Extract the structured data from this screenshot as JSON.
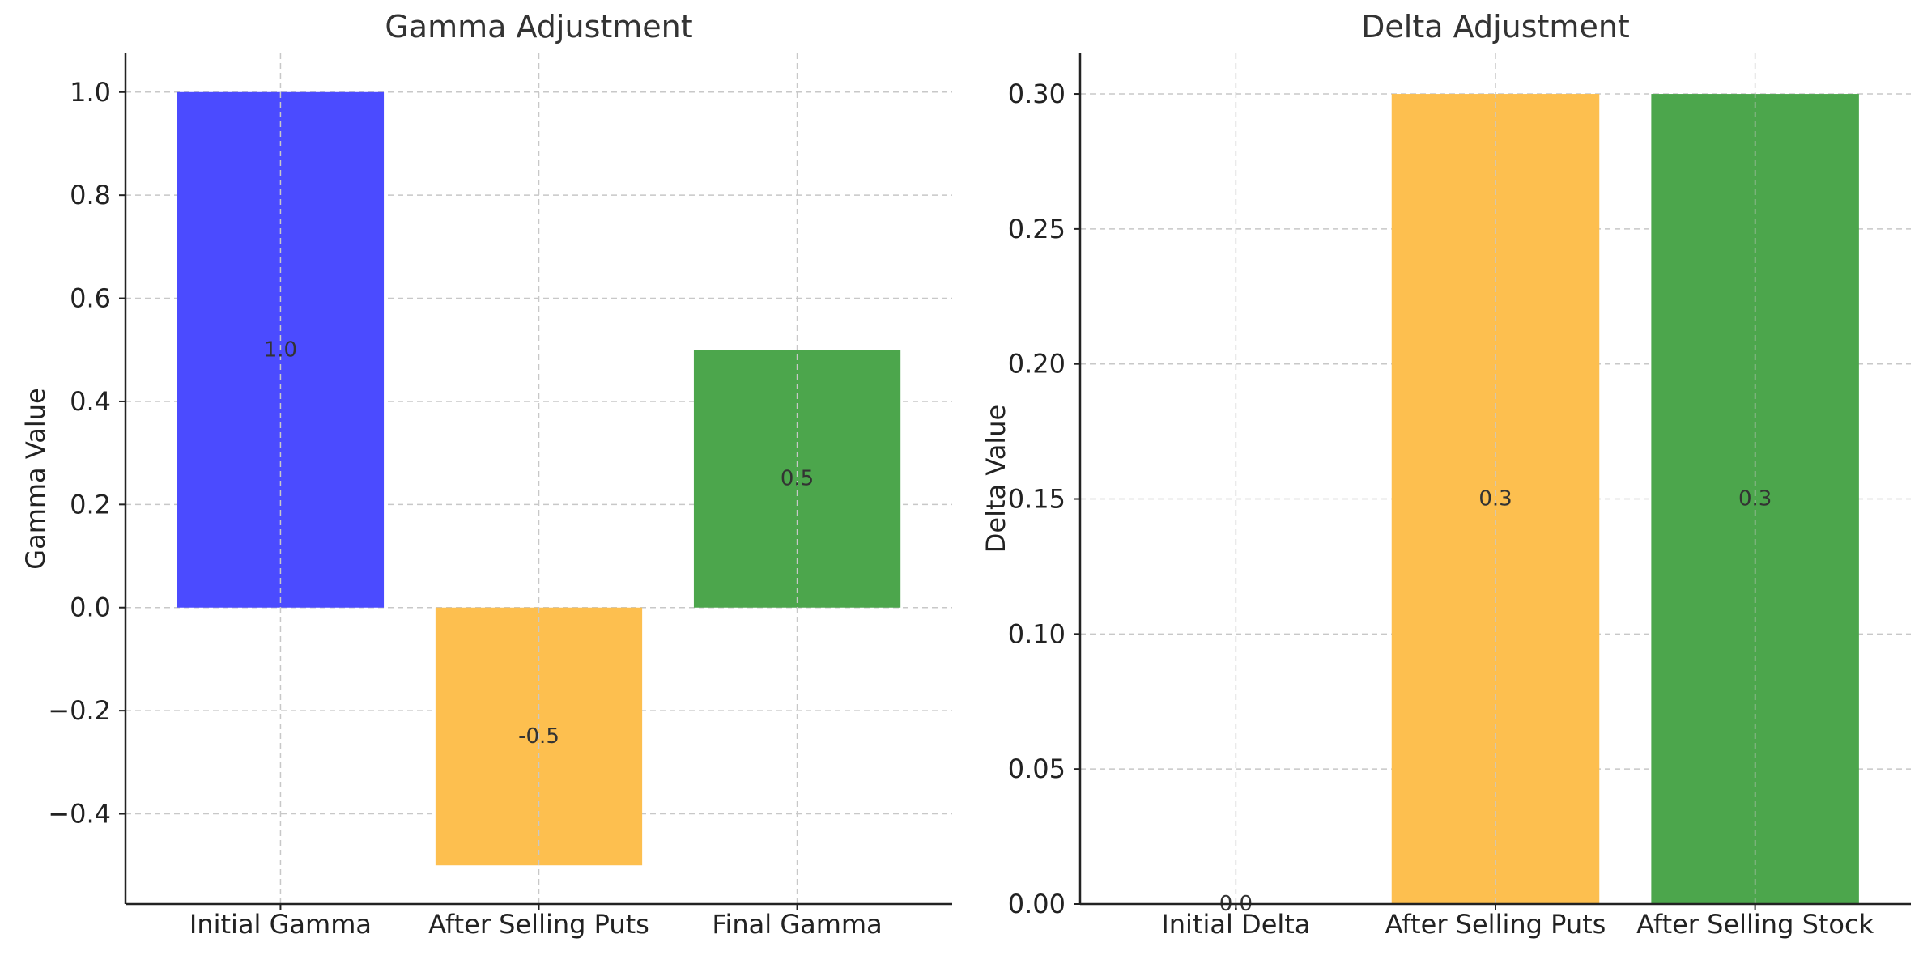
{
  "chart_data": [
    {
      "type": "bar",
      "title": "Gamma Adjustment",
      "xlabel": "",
      "ylabel": "Gamma Value",
      "categories": [
        "Initial Gamma",
        "After Selling Puts",
        "Final Gamma"
      ],
      "values": [
        1.0,
        -0.5,
        0.5
      ],
      "value_labels": [
        "1.0",
        "-0.5",
        "0.5"
      ],
      "colors": [
        "#4B4BFF",
        "#FDBF4F",
        "#4CA64C"
      ],
      "ylim": [
        -0.575,
        1.075
      ],
      "yticks": [
        -0.4,
        -0.2,
        0.0,
        0.2,
        0.4,
        0.6,
        0.8,
        1.0
      ],
      "ytick_labels": [
        "−0.4",
        "−0.2",
        "0.0",
        "0.2",
        "0.4",
        "0.6",
        "0.8",
        "1.0"
      ],
      "grid": true,
      "legend": "none"
    },
    {
      "type": "bar",
      "title": "Delta Adjustment",
      "xlabel": "",
      "ylabel": "Delta Value",
      "categories": [
        "Initial Delta",
        "After Selling Puts",
        "After Selling Stock"
      ],
      "values": [
        0.0,
        0.3,
        0.3
      ],
      "value_labels": [
        "0.0",
        "0.3",
        "0.3"
      ],
      "colors": [
        "#4B4BFF",
        "#FDBF4F",
        "#4CA64C"
      ],
      "ylim": [
        0.0,
        0.315
      ],
      "yticks": [
        0.0,
        0.05,
        0.1,
        0.15,
        0.2,
        0.25,
        0.3
      ],
      "ytick_labels": [
        "0.00",
        "0.05",
        "0.10",
        "0.15",
        "0.20",
        "0.25",
        "0.30"
      ],
      "grid": true,
      "legend": "none"
    }
  ]
}
